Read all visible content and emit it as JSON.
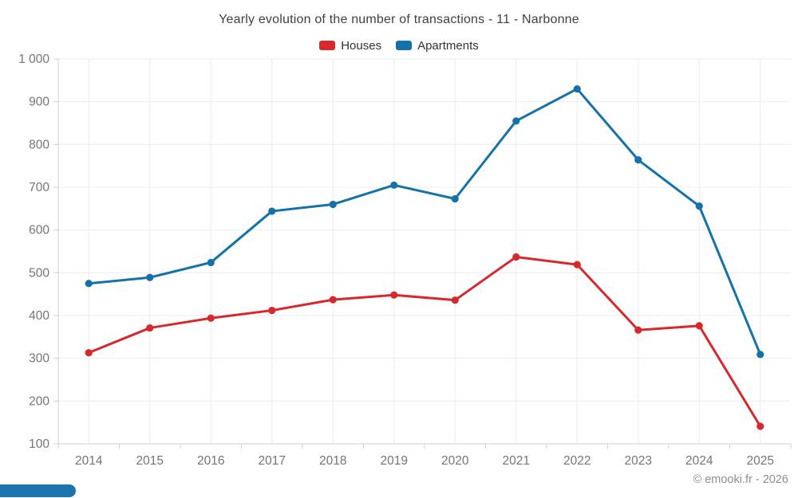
{
  "chart_data": {
    "type": "line",
    "title": "Yearly evolution of the number of transactions - 11 - Narbonne",
    "categories": [
      "2014",
      "2015",
      "2016",
      "2017",
      "2018",
      "2019",
      "2020",
      "2021",
      "2022",
      "2023",
      "2024",
      "2025"
    ],
    "series": [
      {
        "name": "Houses",
        "color": "#d7282e",
        "values": [
          313,
          371,
          394,
          412,
          437,
          448,
          436,
          537,
          519,
          366,
          376,
          141
        ]
      },
      {
        "name": "Apartments",
        "color": "#1472a8",
        "values": [
          475,
          489,
          524,
          644,
          660,
          705,
          673,
          855,
          930,
          764,
          656,
          309
        ]
      }
    ],
    "xlabel": "",
    "ylabel": "",
    "ylim": [
      100,
      1000
    ],
    "ytick_step": 100,
    "ytick_labels": [
      "100",
      "200",
      "300",
      "400",
      "500",
      "600",
      "700",
      "800",
      "900",
      "1 000"
    ],
    "grid": true,
    "legend_position": "top"
  },
  "footer": {
    "credit": "© emooki.fr - 2026"
  },
  "ui": {
    "scrollbar_thumb_color": "#1b74ae",
    "gridline_color": "#ececec",
    "axis_line_color": "#cfcfcf",
    "axis_label_color": "#757575",
    "title_color": "#404040",
    "legend_text_color": "#333333"
  }
}
